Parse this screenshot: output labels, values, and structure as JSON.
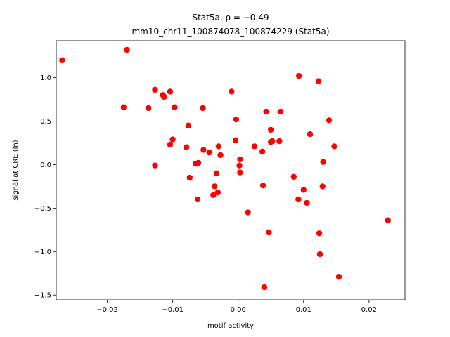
{
  "chart_data": {
    "type": "scatter",
    "title_line1": "Stat5a, ρ = −0.49",
    "title_line2": "mm10_chr11_100874078_100874229 (Stat5a)",
    "xlabel": "motif activity",
    "ylabel": "signal at CRE (ln)",
    "xlim": [
      -0.0278,
      0.0255
    ],
    "ylim": [
      -1.555,
      1.425
    ],
    "x_ticks": [
      -0.02,
      -0.01,
      0.0,
      0.01,
      0.02
    ],
    "x_tick_labels": [
      "−0.02",
      "−0.01",
      "0.00",
      "0.01",
      "0.02"
    ],
    "y_ticks": [
      -1.5,
      -1.0,
      -0.5,
      0.0,
      0.5,
      1.0
    ],
    "y_tick_labels": [
      "−1.5",
      "−1.0",
      "−0.5",
      "0.0",
      "0.5",
      "1.0"
    ],
    "grid": false,
    "marker_color": "#ff0000",
    "points": [
      {
        "x": -0.0269,
        "y": 1.2
      },
      {
        "x": -0.017,
        "y": 1.32
      },
      {
        "x": -0.0175,
        "y": 0.66
      },
      {
        "x": -0.0137,
        "y": 0.65
      },
      {
        "x": -0.0127,
        "y": 0.86
      },
      {
        "x": -0.0115,
        "y": 0.8
      },
      {
        "x": -0.0113,
        "y": 0.78
      },
      {
        "x": -0.0104,
        "y": 0.84
      },
      {
        "x": -0.0097,
        "y": 0.66
      },
      {
        "x": -0.0127,
        "y": -0.01
      },
      {
        "x": -0.0104,
        "y": 0.23
      },
      {
        "x": -0.01,
        "y": 0.29
      },
      {
        "x": -0.0076,
        "y": 0.45
      },
      {
        "x": -0.0079,
        "y": 0.2
      },
      {
        "x": -0.0074,
        "y": -0.15
      },
      {
        "x": -0.0065,
        "y": 0.01
      },
      {
        "x": -0.0061,
        "y": 0.02
      },
      {
        "x": -0.0062,
        "y": -0.4
      },
      {
        "x": -0.0054,
        "y": 0.65
      },
      {
        "x": -0.0053,
        "y": 0.17
      },
      {
        "x": -0.0044,
        "y": 0.14
      },
      {
        "x": -0.003,
        "y": 0.21
      },
      {
        "x": -0.0027,
        "y": 0.11
      },
      {
        "x": -0.0033,
        "y": -0.1
      },
      {
        "x": -0.0036,
        "y": -0.25
      },
      {
        "x": -0.0031,
        "y": -0.32
      },
      {
        "x": -0.0038,
        "y": -0.35
      },
      {
        "x": -0.001,
        "y": 0.84
      },
      {
        "x": -0.0003,
        "y": 0.52
      },
      {
        "x": -0.0004,
        "y": 0.28
      },
      {
        "x": 0.0003,
        "y": 0.06
      },
      {
        "x": 0.0002,
        "y": -0.01
      },
      {
        "x": 0.0003,
        "y": -0.09
      },
      {
        "x": 0.0015,
        "y": -0.55
      },
      {
        "x": 0.0025,
        "y": 0.21
      },
      {
        "x": 0.0037,
        "y": 0.15
      },
      {
        "x": 0.0043,
        "y": 0.61
      },
      {
        "x": 0.005,
        "y": 0.4
      },
      {
        "x": 0.005,
        "y": 0.26
      },
      {
        "x": 0.0052,
        "y": 0.27
      },
      {
        "x": 0.0065,
        "y": 0.61
      },
      {
        "x": 0.0063,
        "y": 0.27
      },
      {
        "x": 0.0038,
        "y": -0.24
      },
      {
        "x": 0.0047,
        "y": -0.78
      },
      {
        "x": 0.004,
        "y": -1.41
      },
      {
        "x": 0.0093,
        "y": 1.02
      },
      {
        "x": 0.0085,
        "y": -0.14
      },
      {
        "x": 0.0092,
        "y": -0.4
      },
      {
        "x": 0.01,
        "y": -0.29
      },
      {
        "x": 0.0105,
        "y": -0.44
      },
      {
        "x": 0.011,
        "y": 0.35
      },
      {
        "x": 0.0123,
        "y": 0.96
      },
      {
        "x": 0.0139,
        "y": 0.51
      },
      {
        "x": 0.0147,
        "y": 0.21
      },
      {
        "x": 0.013,
        "y": 0.03
      },
      {
        "x": 0.0129,
        "y": -0.25
      },
      {
        "x": 0.0124,
        "y": -0.79
      },
      {
        "x": 0.0125,
        "y": -1.03
      },
      {
        "x": 0.0154,
        "y": -1.29
      },
      {
        "x": 0.0229,
        "y": -0.64
      }
    ]
  }
}
